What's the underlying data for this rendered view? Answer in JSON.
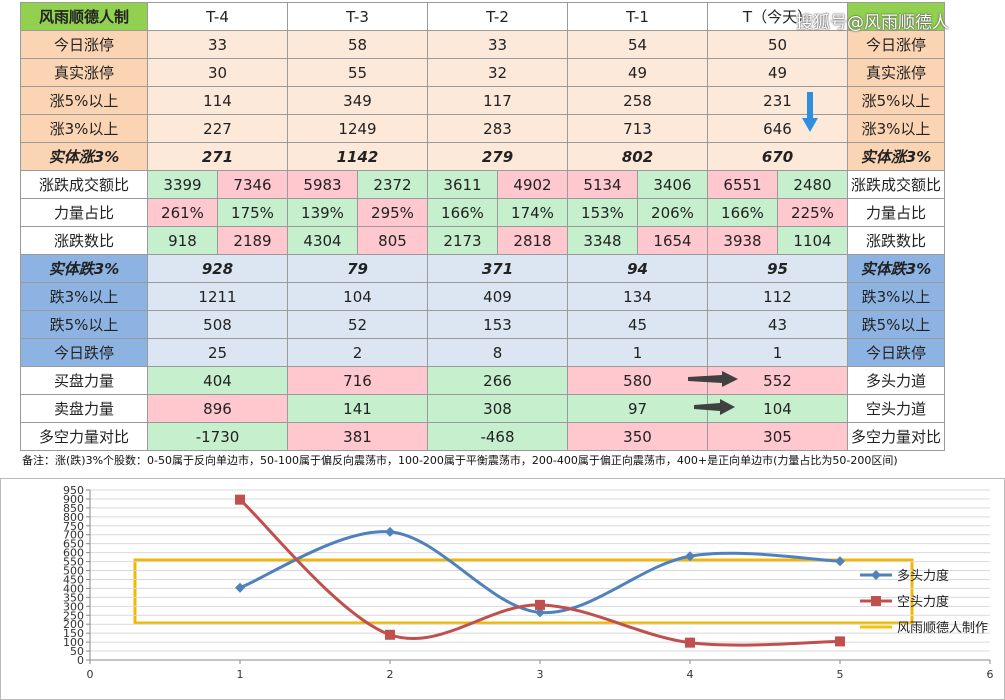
{
  "watermark": "搜狐号@风雨顺德人",
  "table": {
    "header": [
      "风雨顺德人制",
      "T-4",
      "T-3",
      "T-2",
      "T-1",
      "T（今天）"
    ],
    "rows": [
      {
        "label": "今日涨停",
        "cells": [
          33,
          58,
          33,
          54,
          50
        ],
        "right": "今日涨停"
      },
      {
        "label": "真实涨停",
        "cells": [
          30,
          55,
          32,
          49,
          49
        ],
        "right": "真实涨停"
      },
      {
        "label": "涨5%以上",
        "cells": [
          114,
          349,
          117,
          258,
          231
        ],
        "right": "涨5%以上"
      },
      {
        "label": "涨3%以上",
        "cells": [
          227,
          1249,
          283,
          713,
          646
        ],
        "right": "涨3%以上"
      },
      {
        "label": "实体涨3%",
        "cells": [
          271,
          1142,
          279,
          802,
          670
        ],
        "right": "实体涨3%"
      },
      {
        "label": "涨跌成交额比",
        "cells": [
          3399,
          7346,
          5983,
          2372,
          3611,
          4902,
          5134,
          3406,
          6551,
          2480
        ],
        "right": "涨跌成交额比"
      },
      {
        "label": "力量占比",
        "cells": [
          "261%",
          "175%",
          "139%",
          "295%",
          "166%",
          "174%",
          "153%",
          "206%",
          "166%",
          "225%"
        ],
        "right": "力量占比"
      },
      {
        "label": "涨跌数比",
        "cells": [
          918,
          2189,
          4304,
          805,
          2173,
          2818,
          3348,
          1654,
          3938,
          1104
        ],
        "right": "涨跌数比"
      },
      {
        "label": "实体跌3%",
        "cells": [
          928,
          79,
          371,
          94,
          95
        ],
        "right": "实体跌3%"
      },
      {
        "label": "跌3%以上",
        "cells": [
          1211,
          104,
          409,
          134,
          112
        ],
        "right": "跌3%以上"
      },
      {
        "label": "跌5%以上",
        "cells": [
          508,
          52,
          153,
          45,
          43
        ],
        "right": "跌5%以上"
      },
      {
        "label": "今日跌停",
        "cells": [
          25,
          2,
          8,
          1,
          1
        ],
        "right": "今日跌停"
      },
      {
        "label": "买盘力量",
        "cells": [
          404,
          716,
          266,
          580,
          552
        ],
        "right": "多头力道"
      },
      {
        "label": "卖盘力量",
        "cells": [
          896,
          141,
          308,
          97,
          104
        ],
        "right": "空头力道"
      },
      {
        "label": "多空力量对比",
        "cells": [
          -1730,
          381,
          -468,
          350,
          305
        ],
        "right": "多空力量对比"
      }
    ],
    "note": "备注：涨(跌)3%个股数：0-50属于反向单边市，50-100属于偏反向震荡市，100-200属于平衡震荡市，200-400属于偏正向震荡市，400+是正向单边市(力量占比为50-200区间)"
  },
  "chart_data": {
    "type": "line",
    "x": [
      1,
      2,
      3,
      4,
      5
    ],
    "series": [
      {
        "name": "多头力度",
        "color": "#4f81bd",
        "values": [
          404,
          716,
          266,
          580,
          552
        ]
      },
      {
        "name": "空头力度",
        "color": "#c0504d",
        "values": [
          896,
          141,
          308,
          97,
          104
        ]
      }
    ],
    "legend_extra": {
      "name": "风雨顺德人制作",
      "color": "#f2c500"
    },
    "xlim": [
      0,
      6
    ],
    "xticks": [
      0,
      1,
      2,
      3,
      4,
      5,
      6
    ],
    "ylim": [
      0,
      950
    ],
    "yticks": [
      0,
      50,
      100,
      150,
      200,
      250,
      300,
      350,
      400,
      450,
      500,
      550,
      600,
      650,
      700,
      750,
      800,
      850,
      900,
      950
    ],
    "grid": true
  }
}
